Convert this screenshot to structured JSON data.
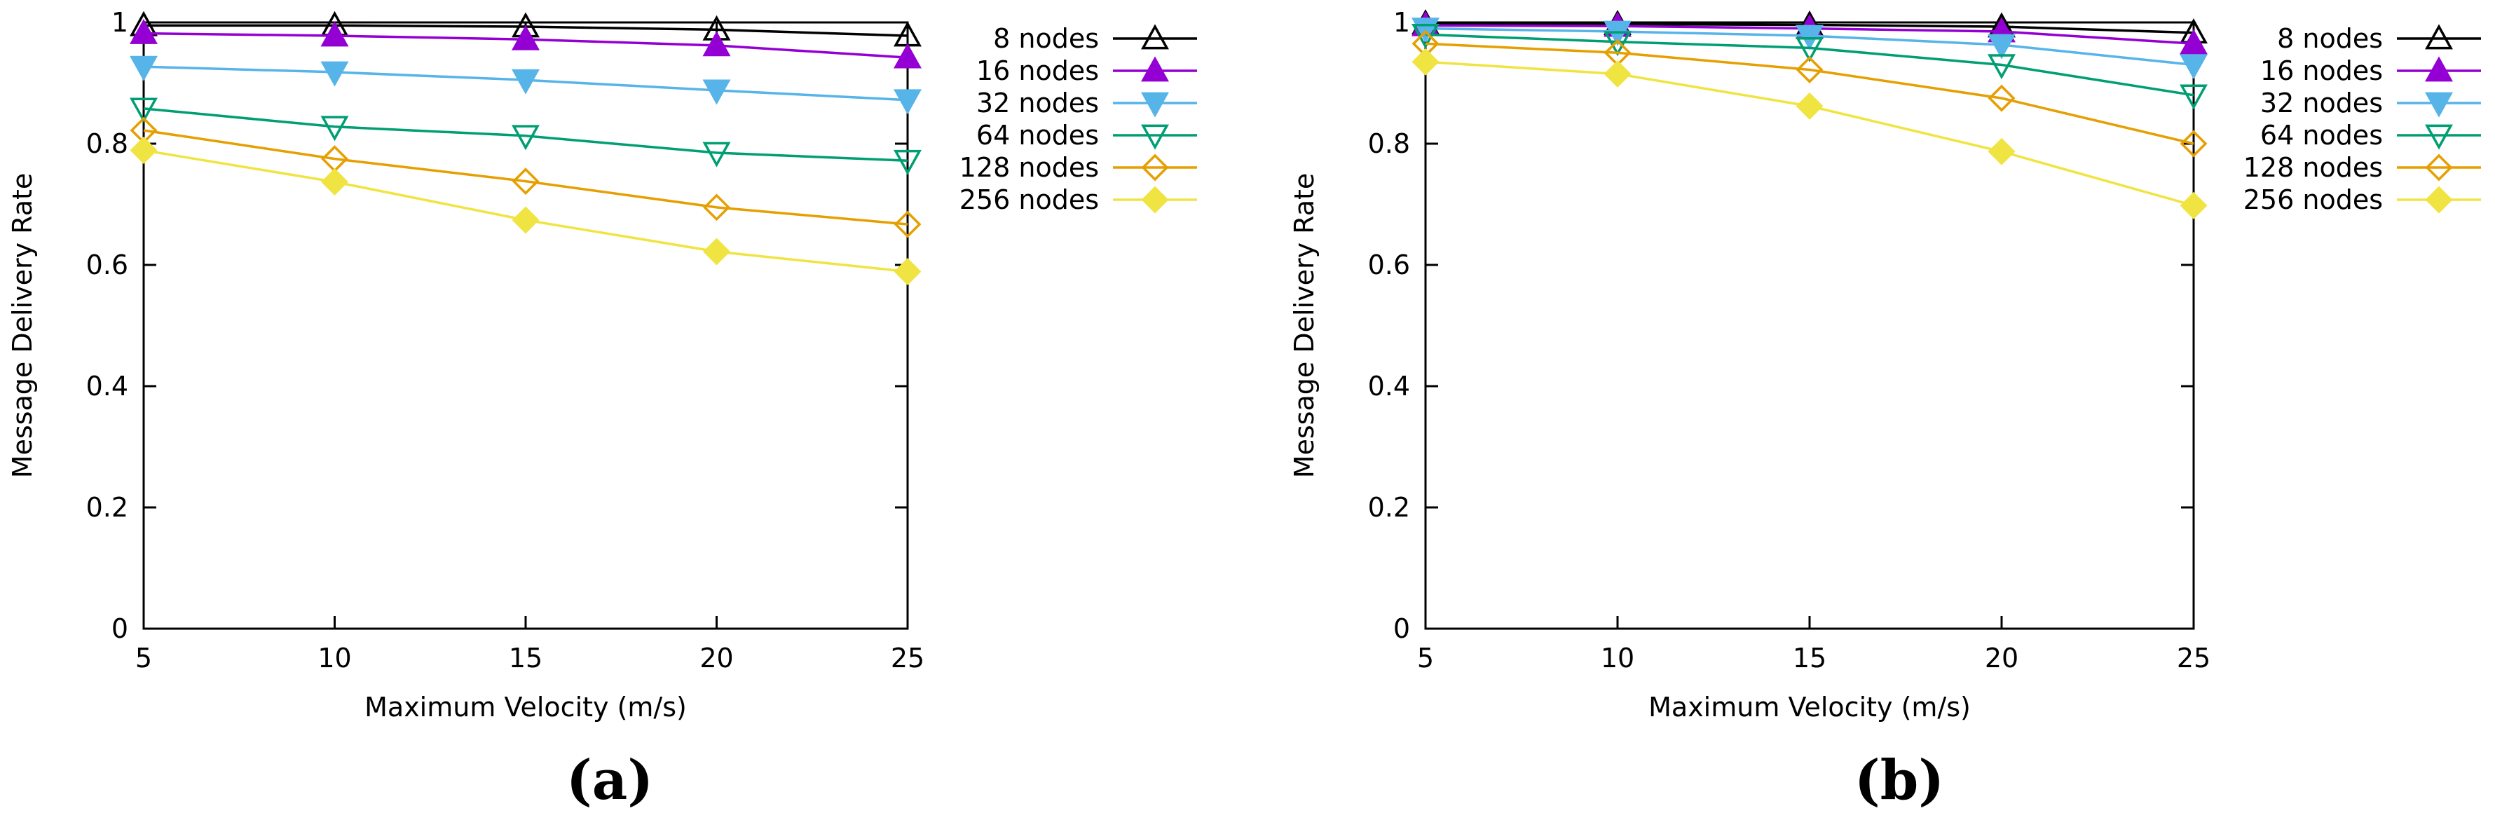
{
  "colors": {
    "8 nodes": "#000000",
    "16 nodes": "#9400d3",
    "32 nodes": "#56b4e9",
    "64 nodes": "#009e73",
    "128 nodes": "#e69f00",
    "256 nodes": "#f0e442"
  },
  "chart_data": [
    {
      "type": "line",
      "caption": "(a)",
      "xlabel": "Maximum Velocity (m/s)",
      "ylabel": "Message Delivery Rate",
      "xlim": [
        5,
        25
      ],
      "ylim": [
        0,
        1
      ],
      "x": [
        5,
        10,
        15,
        20,
        25
      ],
      "xticks": [
        "5",
        "10",
        "15",
        "20",
        "25"
      ],
      "yticks": [
        "0",
        "0.2",
        "0.4",
        "0.6",
        "0.8",
        "1"
      ],
      "legend_position": "right-outside",
      "series": [
        {
          "name": "8 nodes",
          "marker": "triangle-up-open",
          "values": [
            0.995,
            0.995,
            0.993,
            0.988,
            0.978
          ]
        },
        {
          "name": "16 nodes",
          "marker": "triangle-up-filled",
          "values": [
            0.982,
            0.978,
            0.972,
            0.962,
            0.942
          ]
        },
        {
          "name": "32 nodes",
          "marker": "triangle-down-filled",
          "values": [
            0.927,
            0.918,
            0.905,
            0.888,
            0.872
          ]
        },
        {
          "name": "64 nodes",
          "marker": "triangle-down-open",
          "values": [
            0.858,
            0.828,
            0.813,
            0.785,
            0.772
          ]
        },
        {
          "name": "128 nodes",
          "marker": "diamond-open",
          "values": [
            0.822,
            0.775,
            0.738,
            0.695,
            0.667
          ]
        },
        {
          "name": "256 nodes",
          "marker": "diamond-filled",
          "values": [
            0.789,
            0.737,
            0.674,
            0.622,
            0.589
          ]
        }
      ]
    },
    {
      "type": "line",
      "caption": "(b)",
      "xlabel": "Maximum Velocity (m/s)",
      "ylabel": "Message Delivery Rate",
      "xlim": [
        5,
        25
      ],
      "ylim": [
        0,
        1
      ],
      "x": [
        5,
        10,
        15,
        20,
        25
      ],
      "xticks": [
        "5",
        "10",
        "15",
        "20",
        "25"
      ],
      "yticks": [
        "0",
        "0.2",
        "0.4",
        "0.6",
        "0.8",
        "1"
      ],
      "legend_position": "right-outside",
      "series": [
        {
          "name": "8 nodes",
          "marker": "triangle-up-open",
          "values": [
            0.998,
            0.997,
            0.996,
            0.993,
            0.983
          ]
        },
        {
          "name": "16 nodes",
          "marker": "triangle-up-filled",
          "values": [
            0.995,
            0.994,
            0.99,
            0.985,
            0.965
          ]
        },
        {
          "name": "32 nodes",
          "marker": "triangle-down-filled",
          "values": [
            0.99,
            0.985,
            0.978,
            0.963,
            0.93
          ]
        },
        {
          "name": "64 nodes",
          "marker": "triangle-down-open",
          "values": [
            0.98,
            0.968,
            0.958,
            0.93,
            0.88
          ]
        },
        {
          "name": "128 nodes",
          "marker": "diamond-open",
          "values": [
            0.965,
            0.95,
            0.922,
            0.875,
            0.8
          ]
        },
        {
          "name": "256 nodes",
          "marker": "diamond-filled",
          "values": [
            0.935,
            0.915,
            0.862,
            0.787,
            0.698
          ]
        }
      ]
    }
  ]
}
